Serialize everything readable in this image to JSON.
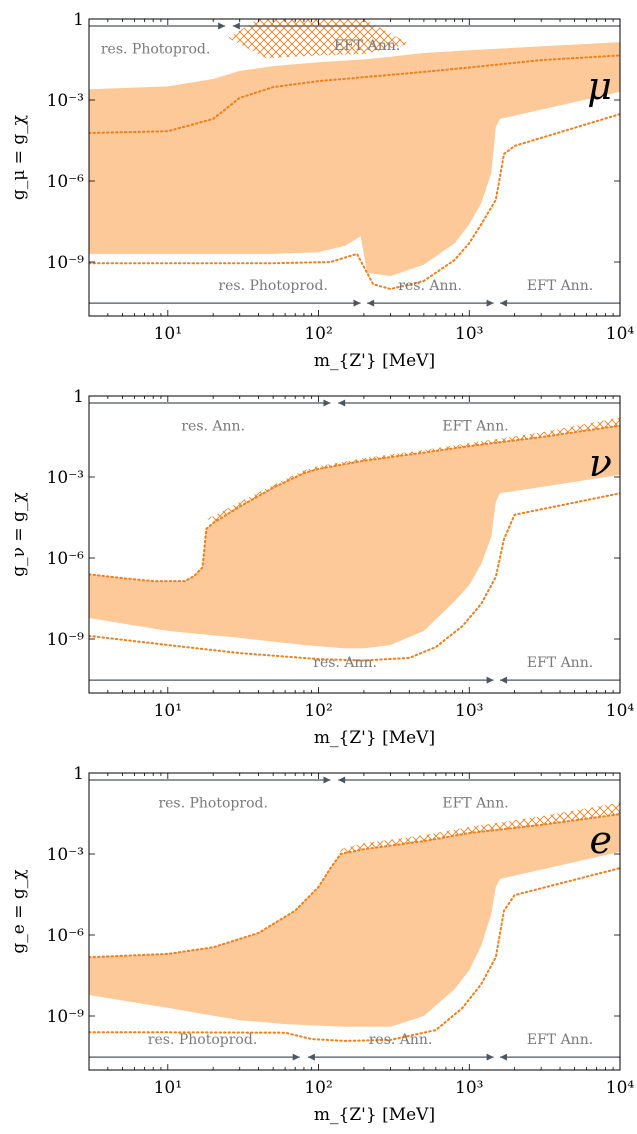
{
  "chart_data": [
    {
      "type": "area",
      "panel_label": "μ",
      "xlabel": "m_{Z'} [MeV]",
      "ylabel": "g_μ = g_χ",
      "x_scale": "log",
      "y_scale": "log",
      "xlim": [
        3,
        10000
      ],
      "ylim": [
        1e-11,
        1
      ],
      "x_ticks": [
        {
          "value": 10,
          "label": "10¹"
        },
        {
          "value": 100,
          "label": "10²"
        },
        {
          "value": 1000,
          "label": "10³"
        },
        {
          "value": 10000,
          "label": "10⁴"
        }
      ],
      "y_ticks": [
        {
          "value": 1,
          "label": "1"
        },
        {
          "value": 0.001,
          "label": "10⁻³"
        },
        {
          "value": 1e-06,
          "label": "10⁻⁶"
        },
        {
          "value": 1e-09,
          "label": "10⁻⁹"
        }
      ],
      "colors": {
        "band": "#fdc998",
        "line": "#ee7f1c",
        "arrow": "#4d5660",
        "label": "#7a7a7a"
      },
      "band": {
        "upper": [
          [
            3,
            0.0025
          ],
          [
            10,
            0.0032
          ],
          [
            20,
            0.006
          ],
          [
            30,
            0.012
          ],
          [
            50,
            0.018
          ],
          [
            100,
            0.025
          ],
          [
            200,
            0.032
          ],
          [
            300,
            0.04
          ],
          [
            500,
            0.055
          ],
          [
            1000,
            0.07
          ],
          [
            10000,
            0.14
          ]
        ],
        "lower": [
          [
            3,
            2e-09
          ],
          [
            10,
            2e-09
          ],
          [
            50,
            2e-09
          ],
          [
            100,
            2.3e-09
          ],
          [
            150,
            4e-09
          ],
          [
            190,
            9e-09
          ],
          [
            210,
            4e-10
          ],
          [
            300,
            3e-10
          ],
          [
            500,
            8e-10
          ],
          [
            800,
            5e-09
          ],
          [
            1000,
            2.5e-08
          ],
          [
            1200,
            1.5e-07
          ],
          [
            1400,
            2e-06
          ],
          [
            1500,
            0.0001
          ],
          [
            1600,
            0.0002
          ],
          [
            10000,
            0.002
          ]
        ]
      },
      "hatch": [
        [
          25,
          0.2
        ],
        [
          40,
          1
        ],
        [
          200,
          1
        ],
        [
          400,
          0.12
        ],
        [
          200,
          0.05
        ],
        [
          100,
          0.045
        ],
        [
          45,
          0.035
        ]
      ],
      "dotted": [
        [
          3,
          9e-10
        ],
        [
          10,
          9e-10
        ],
        [
          50,
          9e-10
        ],
        [
          120,
          1e-09
        ],
        [
          180,
          2e-09
        ],
        [
          230,
          1.5e-10
        ],
        [
          300,
          1e-10
        ],
        [
          500,
          2e-10
        ],
        [
          800,
          1.2e-09
        ],
        [
          1000,
          5e-09
        ],
        [
          1200,
          2.5e-08
        ],
        [
          1500,
          2e-07
        ],
        [
          1700,
          1e-05
        ],
        [
          2000,
          2e-05
        ],
        [
          10000,
          0.0003
        ]
      ],
      "dotted_upper": [
        [
          3,
          6e-05
        ],
        [
          10,
          7e-05
        ],
        [
          20,
          0.0002
        ],
        [
          30,
          0.0012
        ],
        [
          50,
          0.003
        ],
        [
          100,
          0.005
        ],
        [
          200,
          0.007
        ],
        [
          500,
          0.011
        ],
        [
          1000,
          0.016
        ],
        [
          3000,
          0.03
        ],
        [
          10000,
          0.045
        ]
      ],
      "arrows": [
        {
          "kind": "right",
          "x1": 3,
          "x2": 24,
          "y": 0.55,
          "label": "res. Photoprod.",
          "label_x": 8.3,
          "label_y": 0.08
        },
        {
          "kind": "left",
          "x1": 27,
          "x2": 10000,
          "y": 0.55,
          "label": "EFT Ann.",
          "label_x": 210,
          "label_y": 0.11
        },
        {
          "kind": "right",
          "x1": 3,
          "x2": 190,
          "y": 3e-11,
          "label": "res. Photoprod.",
          "label_x": 50,
          "label_y": 1.4e-10
        },
        {
          "kind": "both",
          "x1": 210,
          "x2": 1450,
          "y": 3e-11,
          "label": "res. Ann.",
          "label_x": 550,
          "label_y": 1.4e-10
        },
        {
          "kind": "left",
          "x1": 1600,
          "x2": 10000,
          "y": 3e-11,
          "label": "EFT Ann.",
          "label_x": 4000,
          "label_y": 1.4e-10
        }
      ]
    },
    {
      "type": "area",
      "panel_label": "ν",
      "xlabel": "m_{Z'} [MeV]",
      "ylabel": "g_ν = g_χ",
      "x_scale": "log",
      "y_scale": "log",
      "xlim": [
        3,
        10000
      ],
      "ylim": [
        1e-11,
        1
      ],
      "x_ticks": [
        {
          "value": 10,
          "label": "10¹"
        },
        {
          "value": 100,
          "label": "10²"
        },
        {
          "value": 1000,
          "label": "10³"
        },
        {
          "value": 10000,
          "label": "10⁴"
        }
      ],
      "y_ticks": [
        {
          "value": 1,
          "label": "1"
        },
        {
          "value": 0.001,
          "label": "10⁻³"
        },
        {
          "value": 1e-06,
          "label": "10⁻⁶"
        },
        {
          "value": 1e-09,
          "label": "10⁻⁹"
        }
      ],
      "colors": {
        "band": "#fdc998",
        "line": "#ee7f1c",
        "arrow": "#4d5660",
        "label": "#7a7a7a"
      },
      "band": {
        "upper": [
          [
            3,
            2.5e-07
          ],
          [
            5,
            1.8e-07
          ],
          [
            8,
            1.4e-07
          ],
          [
            13,
            1.4e-07
          ],
          [
            15,
            2.2e-07
          ],
          [
            17,
            4.5e-07
          ],
          [
            18,
            1.2e-05
          ],
          [
            20,
            2e-05
          ],
          [
            30,
            8e-05
          ],
          [
            50,
            0.0004
          ],
          [
            80,
            0.0014
          ],
          [
            100,
            0.002
          ],
          [
            200,
            0.004
          ],
          [
            500,
            0.008
          ],
          [
            1000,
            0.014
          ],
          [
            3000,
            0.03
          ],
          [
            10000,
            0.08
          ]
        ],
        "lower": [
          [
            3,
            6e-09
          ],
          [
            10,
            2e-09
          ],
          [
            30,
            1.1e-09
          ],
          [
            80,
            6e-10
          ],
          [
            150,
            4.5e-10
          ],
          [
            200,
            4.5e-10
          ],
          [
            300,
            6e-10
          ],
          [
            500,
            2e-09
          ],
          [
            800,
            2.5e-08
          ],
          [
            1000,
            1e-07
          ],
          [
            1200,
            6e-07
          ],
          [
            1400,
            6e-06
          ],
          [
            1500,
            0.00012
          ],
          [
            1600,
            0.00025
          ],
          [
            10000,
            0.0012
          ]
        ]
      },
      "hatch": [
        [
          18,
          3e-05
        ],
        [
          20,
          3.5e-05
        ],
        [
          30,
          0.00012
        ],
        [
          50,
          0.0005
        ],
        [
          80,
          0.0018
        ],
        [
          100,
          0.0025
        ],
        [
          200,
          0.005
        ],
        [
          500,
          0.01
        ],
        [
          1000,
          0.018
        ],
        [
          3000,
          0.045
        ],
        [
          10000,
          0.16
        ],
        [
          10000,
          0.08
        ],
        [
          3000,
          0.03
        ],
        [
          1000,
          0.014
        ],
        [
          500,
          0.008
        ],
        [
          200,
          0.004
        ],
        [
          100,
          0.002
        ],
        [
          80,
          0.0014
        ],
        [
          50,
          0.0004
        ],
        [
          30,
          8e-05
        ],
        [
          20,
          2e-05
        ]
      ],
      "dotted": [
        [
          3,
          1.3e-09
        ],
        [
          10,
          6e-10
        ],
        [
          30,
          3e-10
        ],
        [
          100,
          1.8e-10
        ],
        [
          200,
          1.6e-10
        ],
        [
          400,
          2e-10
        ],
        [
          600,
          5e-10
        ],
        [
          900,
          3e-09
        ],
        [
          1200,
          2e-08
        ],
        [
          1500,
          2e-07
        ],
        [
          1700,
          5e-06
        ],
        [
          2000,
          4e-05
        ],
        [
          10000,
          0.00025
        ]
      ],
      "dotted_upper": [
        [
          3,
          2.5e-07
        ],
        [
          5,
          1.8e-07
        ],
        [
          8,
          1.4e-07
        ],
        [
          13,
          1.4e-07
        ],
        [
          15,
          2.2e-07
        ],
        [
          17,
          4.5e-07
        ],
        [
          18,
          1.2e-05
        ],
        [
          20,
          2e-05
        ],
        [
          30,
          8e-05
        ],
        [
          50,
          0.0004
        ],
        [
          80,
          0.0014
        ],
        [
          100,
          0.002
        ],
        [
          200,
          0.004
        ],
        [
          500,
          0.008
        ],
        [
          1000,
          0.014
        ],
        [
          3000,
          0.03
        ],
        [
          10000,
          0.08
        ]
      ],
      "arrows": [
        {
          "kind": "right",
          "x1": 3,
          "x2": 120,
          "y": 0.55,
          "label": "res. Ann.",
          "label_x": 20,
          "label_y": 0.08
        },
        {
          "kind": "left",
          "x1": 135,
          "x2": 10000,
          "y": 0.55,
          "label": "EFT Ann.",
          "label_x": 1100,
          "label_y": 0.08
        },
        {
          "kind": "right",
          "x1": 3,
          "x2": 1450,
          "y": 3e-11,
          "label": "res. Ann.",
          "label_x": 150,
          "label_y": 1.4e-10
        },
        {
          "kind": "left",
          "x1": 1600,
          "x2": 10000,
          "y": 3e-11,
          "label": "EFT Ann.",
          "label_x": 4000,
          "label_y": 1.4e-10
        }
      ]
    },
    {
      "type": "area",
      "panel_label": "e",
      "xlabel": "m_{Z'} [MeV]",
      "ylabel": "g_e = g_χ",
      "x_scale": "log",
      "y_scale": "log",
      "xlim": [
        3,
        10000
      ],
      "ylim": [
        1e-11,
        1
      ],
      "x_ticks": [
        {
          "value": 10,
          "label": "10¹"
        },
        {
          "value": 100,
          "label": "10²"
        },
        {
          "value": 1000,
          "label": "10³"
        },
        {
          "value": 10000,
          "label": "10⁴"
        }
      ],
      "y_ticks": [
        {
          "value": 1,
          "label": "1"
        },
        {
          "value": 0.001,
          "label": "10⁻³"
        },
        {
          "value": 1e-06,
          "label": "10⁻⁶"
        },
        {
          "value": 1e-09,
          "label": "10⁻⁹"
        }
      ],
      "colors": {
        "band": "#fdc998",
        "line": "#ee7f1c",
        "arrow": "#4d5660",
        "label": "#7a7a7a"
      },
      "band": {
        "upper": [
          [
            3,
            1.5e-07
          ],
          [
            10,
            2e-07
          ],
          [
            20,
            3.5e-07
          ],
          [
            40,
            1.2e-06
          ],
          [
            70,
            8e-06
          ],
          [
            100,
            6e-05
          ],
          [
            120,
            0.0003
          ],
          [
            140,
            0.001
          ],
          [
            200,
            0.0015
          ],
          [
            500,
            0.003
          ],
          [
            1000,
            0.006
          ],
          [
            3000,
            0.012
          ],
          [
            10000,
            0.03
          ]
        ],
        "lower": [
          [
            3,
            6e-09
          ],
          [
            10,
            2e-09
          ],
          [
            30,
            7e-10
          ],
          [
            60,
            5e-10
          ],
          [
            150,
            4e-10
          ],
          [
            300,
            4e-10
          ],
          [
            500,
            1e-09
          ],
          [
            800,
            1e-08
          ],
          [
            1000,
            5e-08
          ],
          [
            1200,
            4e-07
          ],
          [
            1400,
            6e-06
          ],
          [
            1500,
            6e-05
          ],
          [
            1600,
            0.00012
          ],
          [
            10000,
            0.0012
          ]
        ]
      },
      "hatch": [
        [
          140,
          0.0015
        ],
        [
          200,
          0.0025
        ],
        [
          500,
          0.005
        ],
        [
          1000,
          0.01
        ],
        [
          3000,
          0.025
        ],
        [
          10000,
          0.08
        ],
        [
          10000,
          0.03
        ],
        [
          3000,
          0.012
        ],
        [
          1000,
          0.006
        ],
        [
          500,
          0.003
        ],
        [
          200,
          0.0015
        ],
        [
          140,
          0.001
        ]
      ],
      "dotted": [
        [
          3,
          2.5e-10
        ],
        [
          10,
          2.5e-10
        ],
        [
          60,
          2.4e-10
        ],
        [
          90,
          1.4e-10
        ],
        [
          150,
          1.2e-10
        ],
        [
          300,
          1.3e-10
        ],
        [
          600,
          3e-10
        ],
        [
          900,
          2e-09
        ],
        [
          1200,
          1.5e-08
        ],
        [
          1500,
          1.5e-07
        ],
        [
          1700,
          8e-06
        ],
        [
          2000,
          3e-05
        ],
        [
          10000,
          0.0003
        ]
      ],
      "dotted_upper": [
        [
          3,
          1.5e-07
        ],
        [
          10,
          2e-07
        ],
        [
          20,
          3.5e-07
        ],
        [
          40,
          1.2e-06
        ],
        [
          70,
          8e-06
        ],
        [
          100,
          6e-05
        ],
        [
          120,
          0.0003
        ],
        [
          140,
          0.001
        ],
        [
          200,
          0.0015
        ],
        [
          500,
          0.003
        ],
        [
          1000,
          0.006
        ],
        [
          3000,
          0.012
        ],
        [
          10000,
          0.03
        ]
      ],
      "arrows": [
        {
          "kind": "right",
          "x1": 3,
          "x2": 120,
          "y": 0.55,
          "label": "res. Photoprod.",
          "label_x": 20,
          "label_y": 0.08
        },
        {
          "kind": "left",
          "x1": 135,
          "x2": 10000,
          "y": 0.55,
          "label": "EFT Ann.",
          "label_x": 1100,
          "label_y": 0.08
        },
        {
          "kind": "right",
          "x1": 3,
          "x2": 75,
          "y": 3e-11,
          "label": "res. Photoprod.",
          "label_x": 17,
          "label_y": 1.4e-10
        },
        {
          "kind": "both",
          "x1": 85,
          "x2": 1450,
          "y": 3e-11,
          "label": "res. Ann.",
          "label_x": 350,
          "label_y": 1.4e-10
        },
        {
          "kind": "left",
          "x1": 1600,
          "x2": 10000,
          "y": 3e-11,
          "label": "EFT Ann.",
          "label_x": 4000,
          "label_y": 1.4e-10
        }
      ]
    }
  ]
}
